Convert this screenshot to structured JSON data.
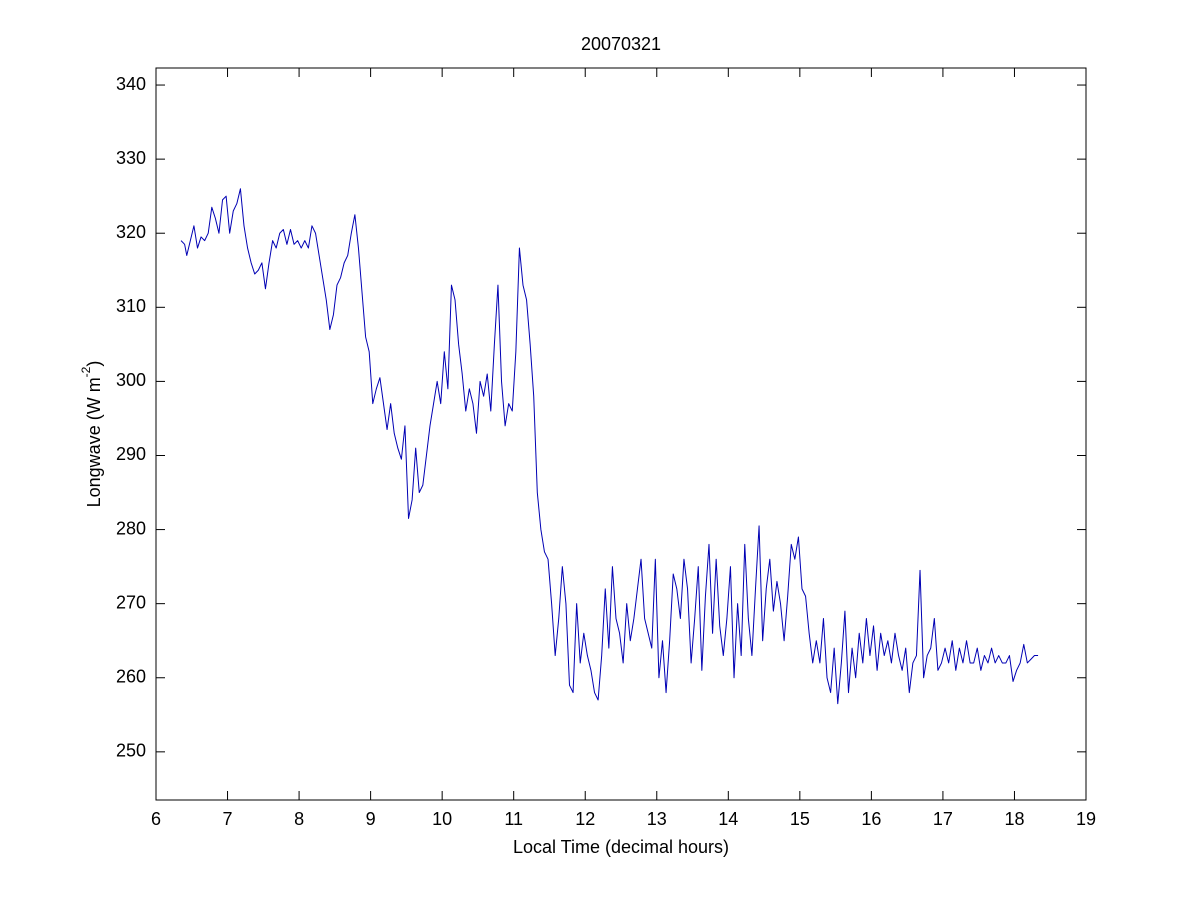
{
  "chart_data": {
    "type": "line",
    "title": "20070321",
    "xlabel": "Local Time (decimal hours)",
    "ylabel": [
      "Longwave (W m",
      "-2",
      ")"
    ],
    "xlim": [
      6,
      19
    ],
    "xticks": [
      6,
      7,
      8,
      9,
      10,
      11,
      12,
      13,
      14,
      15,
      16,
      17,
      18,
      19
    ],
    "ylim": [
      243.5,
      342.3
    ],
    "yticks": [
      250,
      260,
      270,
      280,
      290,
      300,
      310,
      320,
      330,
      340
    ],
    "x": [
      6.35,
      6.4,
      6.43,
      6.48,
      6.53,
      6.58,
      6.63,
      6.68,
      6.73,
      6.78,
      6.83,
      6.88,
      6.93,
      6.98,
      7.03,
      7.08,
      7.13,
      7.18,
      7.23,
      7.28,
      7.33,
      7.38,
      7.43,
      7.48,
      7.53,
      7.58,
      7.63,
      7.68,
      7.73,
      7.78,
      7.83,
      7.88,
      7.93,
      7.98,
      8.03,
      8.08,
      8.13,
      8.18,
      8.23,
      8.28,
      8.33,
      8.38,
      8.43,
      8.48,
      8.53,
      8.58,
      8.63,
      8.68,
      8.73,
      8.78,
      8.83,
      8.88,
      8.93,
      8.98,
      9.03,
      9.08,
      9.13,
      9.18,
      9.23,
      9.28,
      9.33,
      9.38,
      9.43,
      9.48,
      9.53,
      9.58,
      9.63,
      9.68,
      9.73,
      9.78,
      9.83,
      9.88,
      9.93,
      9.98,
      10.03,
      10.08,
      10.13,
      10.18,
      10.23,
      10.28,
      10.33,
      10.38,
      10.43,
      10.48,
      10.53,
      10.58,
      10.63,
      10.68,
      10.73,
      10.78,
      10.83,
      10.88,
      10.93,
      10.98,
      11.03,
      11.08,
      11.13,
      11.18,
      11.23,
      11.28,
      11.33,
      11.38,
      11.43,
      11.48,
      11.53,
      11.58,
      11.63,
      11.68,
      11.73,
      11.78,
      11.83,
      11.88,
      11.93,
      11.98,
      12.03,
      12.08,
      12.13,
      12.18,
      12.23,
      12.28,
      12.33,
      12.38,
      12.43,
      12.48,
      12.53,
      12.58,
      12.63,
      12.68,
      12.73,
      12.78,
      12.83,
      12.88,
      12.93,
      12.98,
      13.03,
      13.08,
      13.13,
      13.18,
      13.23,
      13.28,
      13.33,
      13.38,
      13.43,
      13.48,
      13.53,
      13.58,
      13.63,
      13.68,
      13.73,
      13.78,
      13.83,
      13.88,
      13.93,
      13.98,
      14.03,
      14.08,
      14.13,
      14.18,
      14.23,
      14.28,
      14.33,
      14.38,
      14.43,
      14.48,
      14.53,
      14.58,
      14.63,
      14.68,
      14.73,
      14.78,
      14.83,
      14.88,
      14.93,
      14.98,
      15.03,
      15.08,
      15.13,
      15.18,
      15.23,
      15.28,
      15.33,
      15.38,
      15.43,
      15.48,
      15.53,
      15.58,
      15.63,
      15.68,
      15.73,
      15.78,
      15.83,
      15.88,
      15.93,
      15.98,
      16.03,
      16.08,
      16.13,
      16.18,
      16.23,
      16.28,
      16.33,
      16.38,
      16.43,
      16.48,
      16.53,
      16.58,
      16.63,
      16.68,
      16.73,
      16.78,
      16.83,
      16.88,
      16.93,
      16.98,
      17.03,
      17.08,
      17.13,
      17.18,
      17.23,
      17.28,
      17.33,
      17.38,
      17.43,
      17.48,
      17.53,
      17.58,
      17.63,
      17.68,
      17.73,
      17.78,
      17.83,
      17.88,
      17.93,
      17.98,
      18.03,
      18.08,
      18.13,
      18.18,
      18.23,
      18.28,
      18.33
    ],
    "series": [
      {
        "color": "#0000b4",
        "values": [
          319,
          318.5,
          317,
          319,
          321,
          318,
          319.5,
          319,
          320,
          323.5,
          322,
          320,
          324.5,
          325,
          320,
          323,
          324,
          326,
          321,
          318,
          316,
          314.5,
          315,
          316,
          312.5,
          316,
          319,
          318,
          320,
          320.5,
          318.5,
          320.5,
          318.5,
          319,
          318,
          319,
          318,
          321,
          320,
          317,
          314,
          311,
          307,
          309,
          313,
          314,
          316,
          317,
          320,
          322.5,
          318,
          312,
          306,
          304,
          297,
          299,
          300.5,
          297,
          293.5,
          297,
          293,
          291,
          289.5,
          294,
          281.5,
          284,
          291,
          285,
          286,
          290,
          294,
          297,
          300,
          297,
          304,
          299,
          313,
          311,
          305,
          301,
          296,
          299,
          297,
          293,
          300,
          298,
          301,
          296,
          305,
          313,
          300,
          294,
          297,
          296,
          304,
          318,
          313,
          311,
          305,
          298,
          285,
          280,
          277,
          276,
          270,
          263,
          268,
          275,
          270,
          259,
          258,
          270,
          262,
          266,
          263,
          261,
          258,
          257,
          263,
          272,
          264,
          275,
          268,
          266,
          262,
          270,
          265,
          268,
          272,
          276,
          268,
          266,
          264,
          276,
          260,
          265,
          258,
          265,
          274,
          272,
          268,
          276,
          272,
          262,
          268,
          275,
          261,
          271,
          278,
          266,
          276,
          267,
          263,
          268,
          275,
          260,
          270,
          263,
          278,
          268,
          263,
          272,
          280.5,
          265,
          272,
          276,
          269,
          273,
          270,
          265,
          271,
          278,
          276,
          279,
          272,
          271,
          266,
          262,
          265,
          262,
          268,
          260,
          258,
          264,
          256.5,
          262,
          269,
          258,
          264,
          260,
          266,
          262,
          268,
          263,
          267,
          261,
          266,
          263,
          265,
          262,
          266,
          263,
          261,
          264,
          258,
          262,
          263,
          274.5,
          260,
          263,
          264,
          268,
          261,
          262,
          264,
          262,
          265,
          261,
          264,
          262,
          265,
          262,
          262,
          264,
          261,
          263,
          262,
          264,
          262,
          263,
          262,
          262,
          263,
          259.5,
          261,
          262,
          264.5,
          262,
          262.5,
          263,
          263
        ]
      }
    ]
  }
}
